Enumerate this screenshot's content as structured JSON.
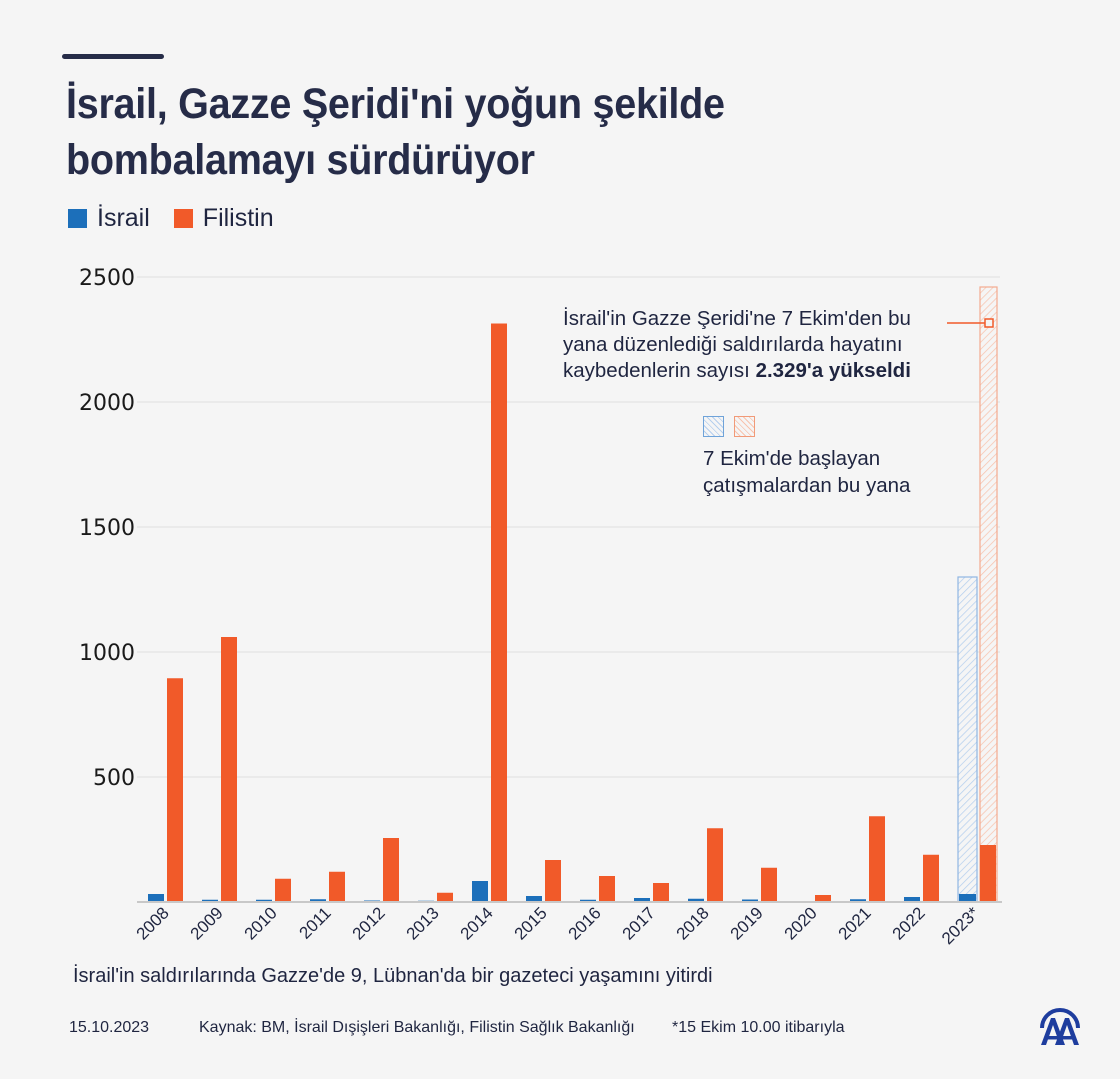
{
  "title": {
    "line1": "İsrail, Gazze Şeridi'ni yoğun şekilde",
    "line2": "bombalamayı sürdürüyor"
  },
  "legend": [
    {
      "label": "İsrail",
      "color": "#1c6fba"
    },
    {
      "label": "Filistin",
      "color": "#f15a29"
    }
  ],
  "annotation": {
    "text": "İsrail'in Gazze Şeridi'ne 7 Ekim'den bu yana düzenlediği saldırılarda hayatını kaybedenlerin sayısı ",
    "highlight": "2.329'a yükseldi"
  },
  "hatch_legend": {
    "label_line1": "7 Ekim'de başlayan",
    "label_line2": "çatışmalardan bu yana"
  },
  "subtitle": "İsrail'in saldırılarında Gazze'de 9, Lübnan'da bir gazeteci yaşamını yitirdi",
  "footer": {
    "date": "15.10.2023",
    "source": "Kaynak: BM, İsrail Dışişleri Bakanlığı, Filistin Sağlık Bakanlığı",
    "note": "*15 Ekim 10.00 itibarıyla",
    "logo_text": "AA"
  },
  "chart_data": {
    "type": "bar",
    "title": "İsrail, Gazze Şeridi'ni yoğun şekilde bombalamayı sürdürüyor",
    "xlabel": "",
    "ylabel": "",
    "ylim": [
      0,
      2500
    ],
    "yticks": [
      500,
      1000,
      1500,
      2000,
      2500
    ],
    "grid": true,
    "legend_position": "top-left",
    "categories": [
      "2008",
      "2009",
      "2010",
      "2011",
      "2012",
      "2013",
      "2014",
      "2015",
      "2016",
      "2017",
      "2018",
      "2019",
      "2020",
      "2021",
      "2022",
      "2023*"
    ],
    "series": [
      {
        "name": "İsrail",
        "color": "#1c6fba",
        "values": [
          32,
          9,
          9,
          11,
          6,
          5,
          84,
          24,
          9,
          16,
          13,
          10,
          3,
          11,
          20,
          32
        ]
      },
      {
        "name": "Filistin",
        "color": "#f15a29",
        "values": [
          895,
          1060,
          93,
          121,
          256,
          37,
          2314,
          168,
          104,
          76,
          295,
          137,
          28,
          343,
          189,
          228
        ]
      }
    ],
    "since_oct7_totals": {
      "category": "2023*",
      "label": "7 Ekim'de başlayan çatışmalardan bu yana",
      "İsrail": 1300,
      "Filistin": 2460
    }
  }
}
